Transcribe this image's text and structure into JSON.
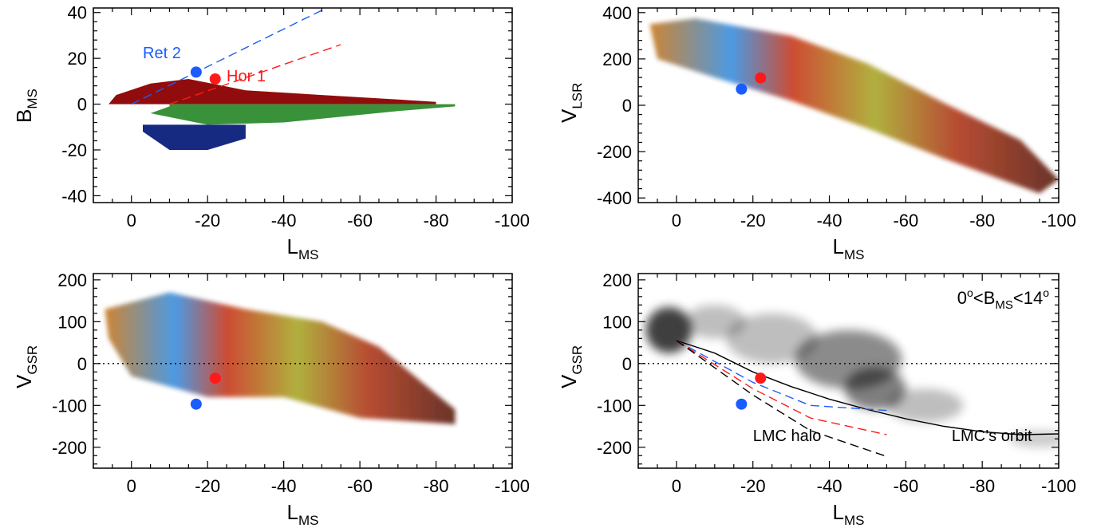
{
  "chart_data": [
    {
      "id": "p1",
      "type": "heatmap",
      "xlabel": "L",
      "xlabel_sub": "MS",
      "ylabel": "B",
      "ylabel_sub": "MS",
      "xlim": [
        10,
        -100
      ],
      "ylim": [
        -43,
        42
      ],
      "xticks": [
        0,
        -20,
        -40,
        -60,
        -80,
        -100
      ],
      "yticks": [
        40,
        20,
        0,
        -20,
        -40
      ],
      "annotations": [
        {
          "text": "Ret 2",
          "color": "#1a5cff",
          "x": -3,
          "y": 20
        },
        {
          "text": "Hor 1",
          "color": "#ff1a1a",
          "x": -25,
          "y": 10
        }
      ],
      "points": [
        {
          "name": "Ret 2",
          "x": -17,
          "y": 14,
          "color": "#1a5cff"
        },
        {
          "name": "Hor 1",
          "x": -22,
          "y": 11,
          "color": "#ff1a1a"
        }
      ],
      "lines": [
        {
          "color": "#1a5cff",
          "dash": true,
          "points": [
            [
              0,
              0
            ],
            [
              -50,
              41
            ]
          ]
        },
        {
          "color": "#ff1a1a",
          "dash": true,
          "points": [
            [
              -10,
              0
            ],
            [
              -55,
              26
            ]
          ]
        }
      ],
      "bands": [
        {
          "color": "#8b0000",
          "points": [
            [
              6,
              0
            ],
            [
              4,
              4
            ],
            [
              -5,
              9
            ],
            [
              -15,
              11
            ],
            [
              -30,
              6
            ],
            [
              -50,
              4
            ],
            [
              -70,
              2
            ],
            [
              -80,
              1
            ],
            [
              -80,
              0
            ]
          ]
        },
        {
          "color": "#2e8b2e",
          "points": [
            [
              -10,
              0
            ],
            [
              -10,
              -1
            ],
            [
              -5,
              -4
            ],
            [
              -20,
              -9
            ],
            [
              -40,
              -8
            ],
            [
              -70,
              -3
            ],
            [
              -85,
              -1
            ],
            [
              -85,
              0
            ]
          ]
        },
        {
          "color": "#0a1f7a",
          "points": [
            [
              -3,
              -9
            ],
            [
              -3,
              -12
            ],
            [
              -10,
              -20
            ],
            [
              -20,
              -20
            ],
            [
              -30,
              -15
            ],
            [
              -30,
              -9
            ]
          ]
        }
      ]
    },
    {
      "id": "p2",
      "type": "heatmap",
      "xlabel": "L",
      "xlabel_sub": "MS",
      "ylabel": "V",
      "ylabel_sub": "LSR",
      "xlim": [
        10,
        -100
      ],
      "ylim": [
        -420,
        420
      ],
      "xticks": [
        0,
        -20,
        -40,
        -60,
        -80,
        -100
      ],
      "yticks": [
        400,
        200,
        0,
        -200,
        -400
      ],
      "points": [
        {
          "name": "Ret 2",
          "x": -17,
          "y": 70,
          "color": "#1a5cff"
        },
        {
          "name": "Hor 1",
          "x": -22,
          "y": 118,
          "color": "#ff1a1a"
        }
      ],
      "bands": [
        {
          "color": "#c84a1e",
          "points": [
            [
              7,
              350
            ],
            [
              -5,
              375
            ],
            [
              -30,
              300
            ],
            [
              -50,
              180
            ],
            [
              -70,
              10
            ],
            [
              -90,
              -150
            ],
            [
              -100,
              -320
            ],
            [
              -95,
              -380
            ],
            [
              -70,
              -230
            ],
            [
              -50,
              -100
            ],
            [
              -30,
              20
            ],
            [
              -10,
              120
            ],
            [
              5,
              200
            ]
          ]
        }
      ]
    },
    {
      "id": "p3",
      "type": "heatmap",
      "xlabel": "L",
      "xlabel_sub": "MS",
      "ylabel": "V",
      "ylabel_sub": "GSR",
      "xlim": [
        10,
        -100
      ],
      "ylim": [
        -250,
        215
      ],
      "xticks": [
        0,
        -20,
        -40,
        -60,
        -80,
        -100
      ],
      "yticks": [
        200,
        100,
        0,
        -100,
        -200
      ],
      "hline": 0,
      "points": [
        {
          "name": "Ret 2",
          "x": -17,
          "y": -97,
          "color": "#1a5cff"
        },
        {
          "name": "Hor 1",
          "x": -22,
          "y": -35,
          "color": "#ff1a1a"
        }
      ],
      "bands": [
        {
          "color": "#6b8a2a",
          "points": [
            [
              7,
              130
            ],
            [
              -10,
              170
            ],
            [
              -30,
              130
            ],
            [
              -50,
              100
            ],
            [
              -65,
              40
            ],
            [
              -85,
              -110
            ],
            [
              -85,
              -145
            ],
            [
              -60,
              -130
            ],
            [
              -40,
              -80
            ],
            [
              -20,
              -80
            ],
            [
              0,
              -30
            ],
            [
              6,
              60
            ]
          ]
        }
      ]
    },
    {
      "id": "p4",
      "type": "heatmap",
      "xlabel": "L",
      "xlabel_sub": "MS",
      "ylabel": "V",
      "ylabel_sub": "GSR",
      "xlim": [
        10,
        -100
      ],
      "ylim": [
        -250,
        215
      ],
      "xticks": [
        0,
        -20,
        -40,
        -60,
        -80,
        -100
      ],
      "yticks": [
        200,
        100,
        0,
        -100,
        -200
      ],
      "hline": 0,
      "title_parts": {
        "pre": "0",
        "mid": "<B",
        "sub": "MS",
        "post": "<14"
      },
      "labels": [
        {
          "text": "LMC halo",
          "x": -20,
          "y": -185
        },
        {
          "text": "LMC’s orbit",
          "x": -72,
          "y": -185
        }
      ],
      "points": [
        {
          "name": "Ret 2",
          "x": -17,
          "y": -97,
          "color": "#1a5cff"
        },
        {
          "name": "Hor 1",
          "x": -22,
          "y": -35,
          "color": "#ff1a1a"
        }
      ],
      "lines": [
        {
          "color": "#000000",
          "dash": false,
          "points": [
            [
              0,
              55
            ],
            [
              -10,
              25
            ],
            [
              -20,
              -20
            ],
            [
              -30,
              -55
            ],
            [
              -40,
              -85
            ],
            [
              -50,
              -110
            ],
            [
              -60,
              -132
            ],
            [
              -70,
              -150
            ],
            [
              -80,
              -163
            ],
            [
              -90,
              -170
            ],
            [
              -100,
              -168
            ]
          ]
        },
        {
          "color": "#1a5cff",
          "dash": true,
          "points": [
            [
              0,
              55
            ],
            [
              -20,
              -45
            ],
            [
              -35,
              -100
            ],
            [
              -55,
              -112
            ]
          ]
        },
        {
          "color": "#ff1a1a",
          "dash": true,
          "points": [
            [
              0,
              55
            ],
            [
              -20,
              -60
            ],
            [
              -35,
              -130
            ],
            [
              -55,
              -170
            ]
          ]
        },
        {
          "color": "#000000",
          "dash": true,
          "points": [
            [
              0,
              55
            ],
            [
              -20,
              -75
            ],
            [
              -35,
              -160
            ],
            [
              -55,
              -222
            ]
          ]
        }
      ],
      "blobs": [
        {
          "x": 2,
          "y": 80,
          "rx": 6,
          "ry": 55,
          "o": 0.75
        },
        {
          "x": -10,
          "y": 100,
          "rx": 8,
          "ry": 40,
          "o": 0.25
        },
        {
          "x": -25,
          "y": 60,
          "rx": 12,
          "ry": 60,
          "o": 0.25
        },
        {
          "x": -45,
          "y": 10,
          "rx": 14,
          "ry": 70,
          "o": 0.45
        },
        {
          "x": -52,
          "y": -60,
          "rx": 8,
          "ry": 50,
          "o": 0.5
        },
        {
          "x": -65,
          "y": -100,
          "rx": 10,
          "ry": 40,
          "o": 0.25
        },
        {
          "x": -95,
          "y": -180,
          "rx": 8,
          "ry": 20,
          "o": 0.2
        }
      ]
    }
  ]
}
